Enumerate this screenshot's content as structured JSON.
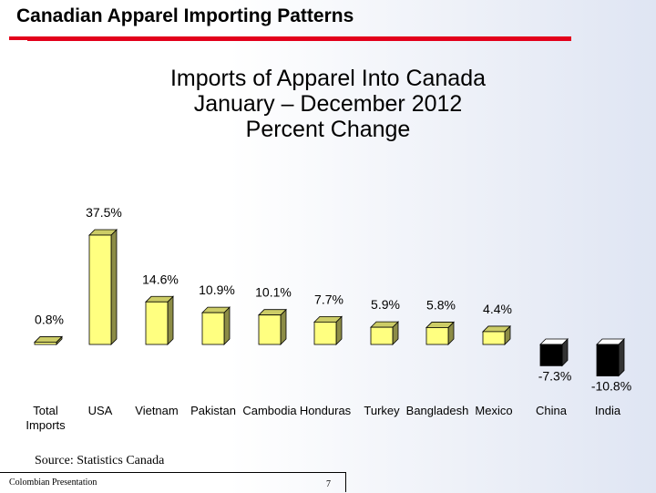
{
  "slide": {
    "title": "Canadian Apparel Importing Patterns",
    "accent_color": "#e3001b"
  },
  "chart_data": {
    "type": "bar",
    "title": "Imports of Apparel Into Canada",
    "subtitle_lines": [
      "January – December 2012",
      "Percent Change"
    ],
    "categories": [
      "Total Imports",
      "USA",
      "Vietnam",
      "Pakistan",
      "Cambodia",
      "Honduras",
      "Turkey",
      "Bangladesh",
      "Mexico",
      "China",
      "India"
    ],
    "values": [
      0.8,
      37.5,
      14.6,
      10.9,
      10.1,
      7.7,
      5.9,
      5.8,
      4.4,
      -7.3,
      -10.8
    ],
    "value_labels": [
      "0.8%",
      "37.5%",
      "14.6%",
      "10.9%",
      "10.1%",
      "7.7%",
      "5.9%",
      "5.8%",
      "4.4%",
      "-7.3%",
      "-10.8%"
    ],
    "positive_color": "#ffff80",
    "negative_color": "#000000",
    "grid": false,
    "legend": "none"
  },
  "footer": {
    "source": "Source: Statistics Canada",
    "presentation": "Colombian Presentation",
    "page_number": "7"
  }
}
